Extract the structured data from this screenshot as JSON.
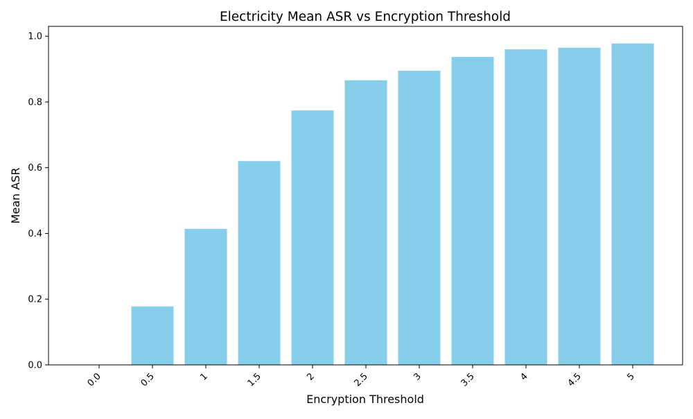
{
  "chart_data": {
    "type": "bar",
    "title": "Electricity Mean ASR vs Encryption Threshold",
    "xlabel": "Encryption Threshold",
    "ylabel": "Mean ASR",
    "categories": [
      "0.0",
      "0.5",
      "1",
      "1.5",
      "2",
      "2.5",
      "3",
      "3.5",
      "4",
      "4.5",
      "5"
    ],
    "values": [
      0.0,
      0.178,
      0.414,
      0.62,
      0.774,
      0.866,
      0.895,
      0.937,
      0.96,
      0.965,
      0.978
    ],
    "ylim": [
      0,
      1.03
    ],
    "yticks": [
      "0.0",
      "0.2",
      "0.4",
      "0.6",
      "0.8",
      "1.0"
    ],
    "bar_color": "#87ceeb",
    "grid": false,
    "legend": "none"
  }
}
